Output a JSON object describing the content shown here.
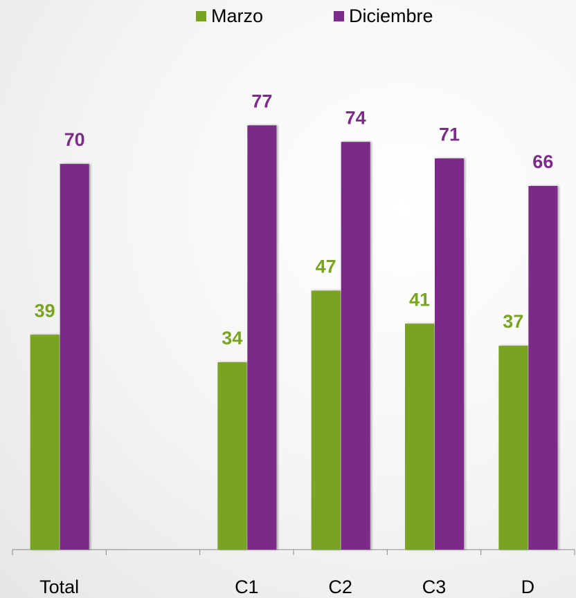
{
  "chart_data": {
    "type": "bar",
    "categories": [
      "Total",
      null,
      "C1",
      "C2",
      "C3",
      "D"
    ],
    "series": [
      {
        "name": "Marzo",
        "color": "#7aa321",
        "values": [
          39,
          null,
          34,
          47,
          41,
          37
        ]
      },
      {
        "name": "Diciembre",
        "color": "#7b2c88",
        "values": [
          70,
          null,
          77,
          74,
          71,
          66
        ]
      }
    ],
    "ylim": [
      0,
      100
    ],
    "grid": false,
    "legend": "top",
    "data_labels": true
  }
}
